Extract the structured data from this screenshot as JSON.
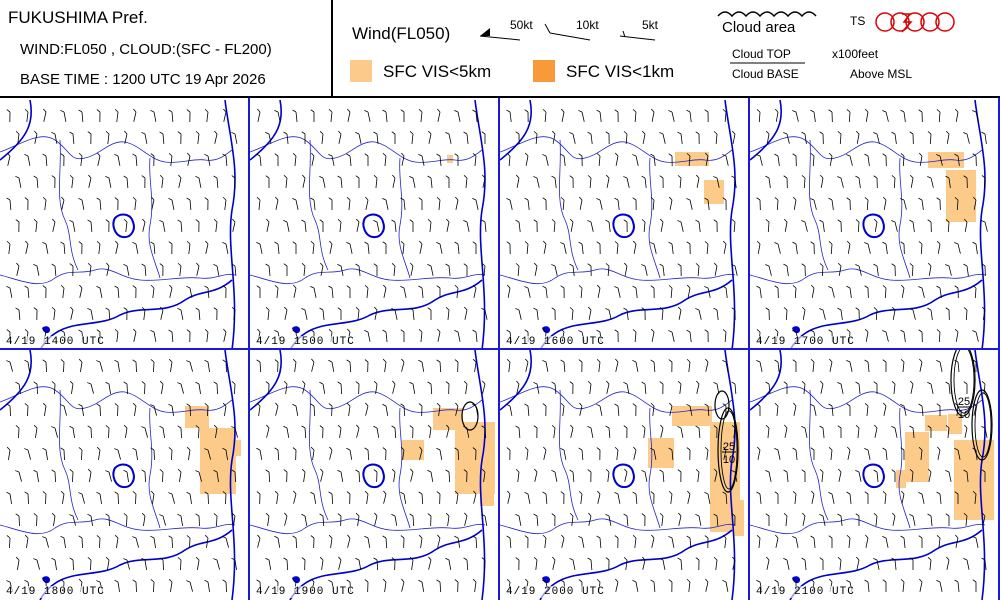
{
  "header": {
    "pref_title": "FUKUSHIMA Pref.",
    "layers": "WIND:FL050 , CLOUD:(SFC - FL200)",
    "base_time": "BASE TIME : 1200 UTC 19 Apr 2026"
  },
  "legend": {
    "wind_title": "Wind(FL050)",
    "kt50": "50kt",
    "kt10": "10kt",
    "kt5": "5kt",
    "vis5_label": "SFC VIS<5km",
    "vis1_label": "SFC VIS<1km",
    "cloud_area": "Cloud area",
    "cloud_top": "Cloud TOP",
    "cloud_base": "Cloud BASE",
    "unit": "x100feet",
    "above": "Above MSL",
    "ts": "TS",
    "colors": {
      "vis5": "#fccb8a",
      "vis1": "#f99a3a",
      "border": "#2222cc",
      "coast": "#0000cc",
      "ts": "#dd0000"
    }
  },
  "panels": [
    {
      "label": "4/19 1400 UTC",
      "vis": []
    },
    {
      "label": "4/19 1500 UTC",
      "vis": [
        [
          197,
          55,
          6,
          8
        ]
      ]
    },
    {
      "label": "4/19 1600 UTC",
      "vis": [
        [
          175,
          52,
          34,
          14
        ],
        [
          204,
          80,
          20,
          24
        ]
      ]
    },
    {
      "label": "4/19 1700 UTC",
      "vis": [
        [
          178,
          52,
          36,
          16
        ],
        [
          196,
          70,
          30,
          52
        ]
      ]
    },
    {
      "label": "4/19 1800 UTC",
      "vis": [
        [
          185,
          56,
          24,
          22
        ],
        [
          200,
          78,
          36,
          66
        ],
        [
          235,
          90,
          6,
          16
        ]
      ]
    },
    {
      "label": "4/19 1900 UTC",
      "vis": [
        [
          183,
          58,
          30,
          22
        ],
        [
          152,
          90,
          22,
          20
        ],
        [
          205,
          72,
          40,
          72
        ],
        [
          230,
          100,
          14,
          56
        ]
      ]
    },
    {
      "label": "4/19 2000 UTC",
      "vis": [
        [
          172,
          56,
          40,
          20
        ],
        [
          148,
          88,
          26,
          30
        ],
        [
          210,
          72,
          30,
          110
        ],
        [
          234,
          150,
          10,
          36
        ]
      ]
    },
    {
      "label": "4/19 2100 UTC",
      "vis": [
        [
          155,
          82,
          24,
          50
        ],
        [
          175,
          65,
          22,
          16
        ],
        [
          198,
          64,
          14,
          20
        ],
        [
          204,
          90,
          40,
          80
        ],
        [
          146,
          120,
          10,
          18
        ]
      ]
    }
  ],
  "clouds": {
    "p5": {
      "top": "",
      "base": ""
    },
    "p6": {
      "top": "25",
      "base": "10"
    },
    "p7": {
      "top": "25",
      "base": "10"
    }
  }
}
